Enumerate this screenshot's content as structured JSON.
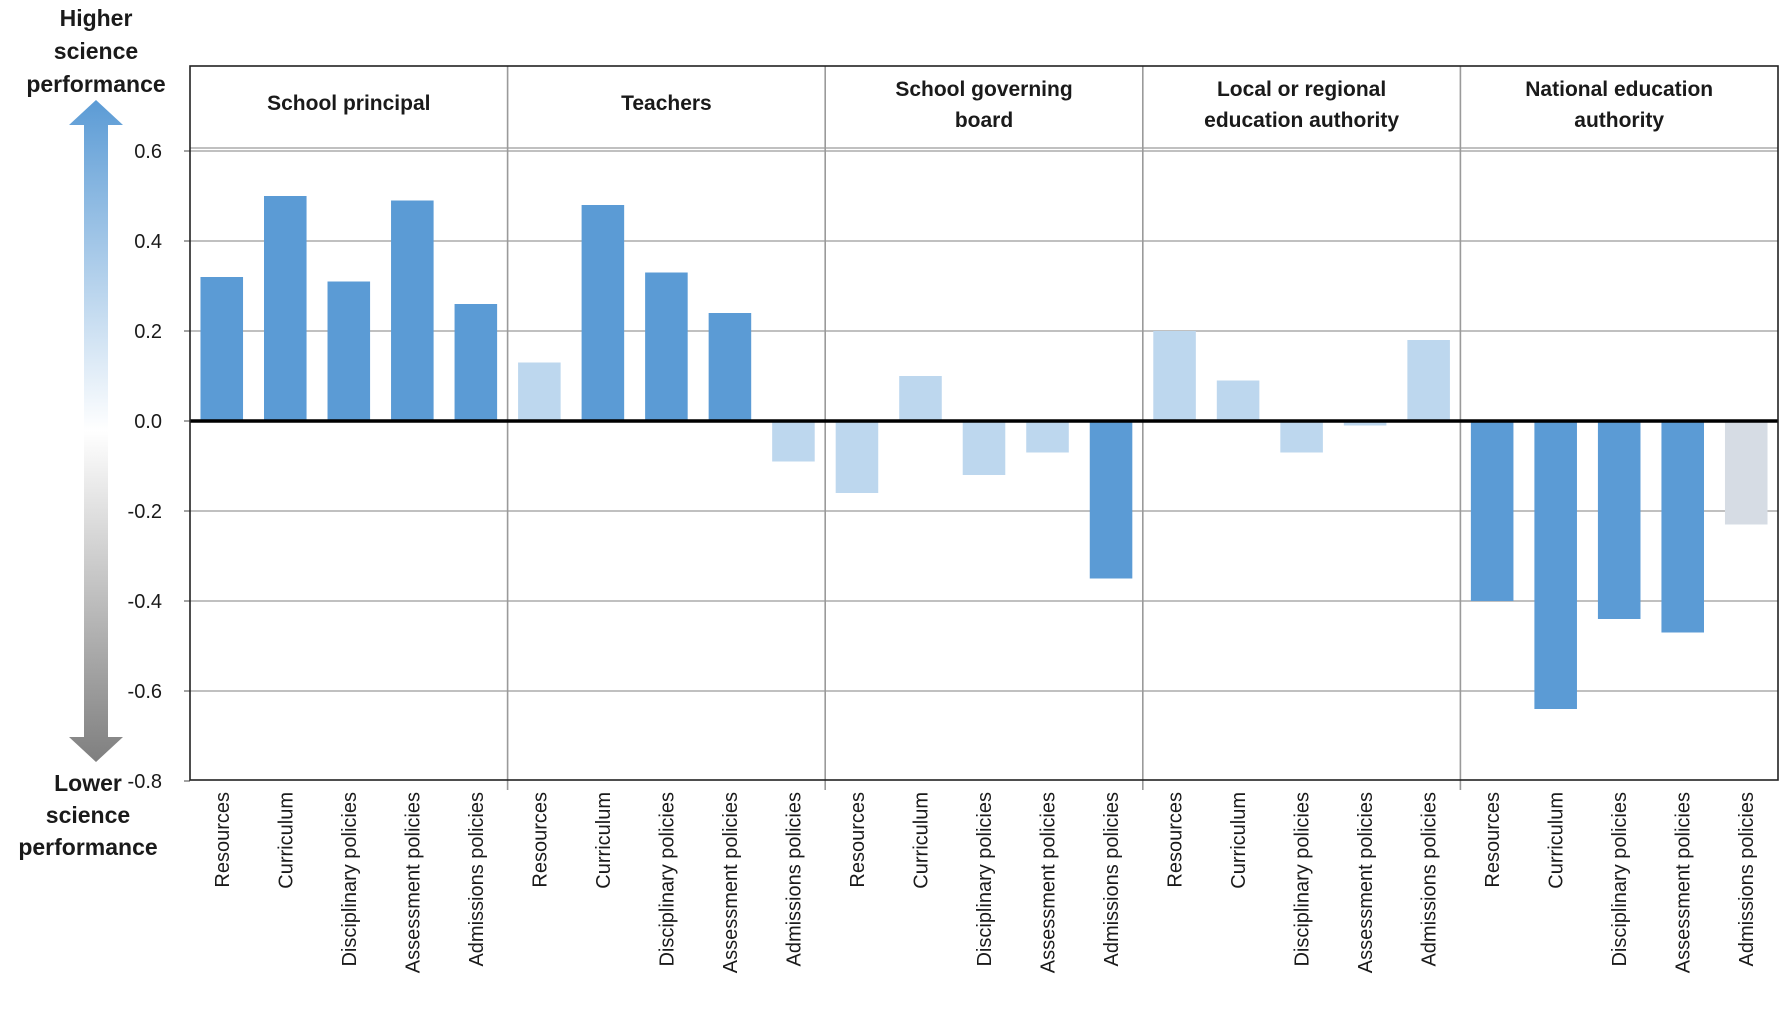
{
  "chart_data": {
    "type": "bar",
    "y_axis_top_label": [
      "Higher",
      "science",
      "performance"
    ],
    "y_axis_bottom_label": [
      "Lower",
      "science",
      "performance"
    ],
    "ylim": [
      -0.8,
      0.6
    ],
    "yticks": [
      0.6,
      0.4,
      0.2,
      0.0,
      -0.2,
      -0.4,
      -0.6,
      -0.8
    ],
    "ytick_labels": [
      "0.6",
      "0.4",
      "0.2",
      "0.0",
      "-0.2",
      "-0.4",
      "-0.6",
      "-0.8"
    ],
    "grid": true,
    "categories": [
      "Resources",
      "Curriculum",
      "Disciplinary policies",
      "Assessment policies",
      "Admissions policies"
    ],
    "colors": {
      "significant": "#5b9bd5",
      "not_significant": "#bdd7ee",
      "not_significant_grey": "#d6dce4",
      "zero_line": "#000000",
      "grid": "#9a9a9a",
      "arrow_top": "#5b9bd5",
      "arrow_bottom": "#7f7f7f"
    },
    "groups": [
      {
        "title": [
          "School principal"
        ],
        "values": [
          0.32,
          0.5,
          0.31,
          0.49,
          0.26
        ],
        "significant": [
          true,
          true,
          true,
          true,
          true
        ]
      },
      {
        "title": [
          "Teachers"
        ],
        "values": [
          0.13,
          0.48,
          0.33,
          0.24,
          -0.09
        ],
        "significant": [
          false,
          true,
          true,
          true,
          false
        ]
      },
      {
        "title": [
          "School governing",
          "board"
        ],
        "values": [
          -0.16,
          0.1,
          -0.12,
          -0.07,
          -0.35
        ],
        "significant": [
          false,
          false,
          false,
          false,
          true
        ]
      },
      {
        "title": [
          "Local or regional",
          "education authority"
        ],
        "values": [
          0.2,
          0.09,
          -0.07,
          -0.01,
          0.18
        ],
        "significant": [
          false,
          false,
          false,
          false,
          false
        ]
      },
      {
        "title": [
          "National education",
          "authority"
        ],
        "values": [
          -0.4,
          -0.64,
          -0.44,
          -0.47,
          -0.23
        ],
        "significant": [
          true,
          true,
          true,
          true,
          false
        ],
        "grey_last": true
      }
    ]
  }
}
